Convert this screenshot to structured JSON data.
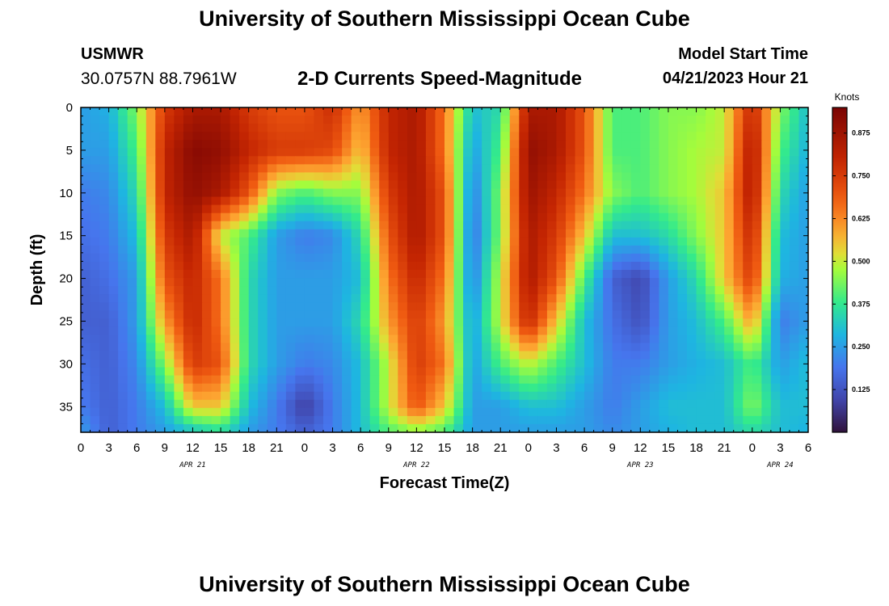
{
  "header": {
    "title": "University of Southern Mississippi Ocean Cube",
    "station": "USMWR",
    "coordinates": "30.0757N  88.7961W",
    "subtitle": "2-D Currents Speed-Magnitude",
    "model_start_label": "Model Start Time",
    "model_start_value": "04/21/2023 Hour 21"
  },
  "footer": {
    "title": "University of Southern Mississippi Ocean Cube"
  },
  "chart_data": {
    "type": "heatmap",
    "title": "2-D Currents Speed-Magnitude",
    "xlabel": "Forecast Time(Z)",
    "ylabel": "Depth (ft)",
    "x_range_hours": [
      0,
      78
    ],
    "x_tick_labels": [
      "0",
      "3",
      "6",
      "9",
      "12",
      "15",
      "18",
      "21",
      "0",
      "3",
      "6",
      "9",
      "12",
      "15",
      "18",
      "21",
      "0",
      "3",
      "6",
      "9",
      "12",
      "15",
      "18",
      "21",
      "0",
      "3",
      "6"
    ],
    "date_labels": [
      {
        "label": "APR 21",
        "hour": 12
      },
      {
        "label": "APR 22",
        "hour": 36
      },
      {
        "label": "APR 23",
        "hour": 60
      },
      {
        "label": "APR 24",
        "hour": 75
      }
    ],
    "y_range_ft": [
      0,
      38
    ],
    "y_ticks": [
      0,
      5,
      10,
      15,
      20,
      25,
      30,
      35
    ],
    "colorbar": {
      "unit": "Knots",
      "range": [
        0,
        0.95
      ],
      "tick_labels": [
        "0.875",
        "0.750",
        "0.625",
        "0.500",
        "0.375",
        "0.250",
        "0.125"
      ],
      "tick_values": [
        0.875,
        0.75,
        0.625,
        0.5,
        0.375,
        0.25,
        0.125
      ]
    },
    "depths_ft": [
      0,
      5,
      10,
      15,
      20,
      25,
      30,
      35,
      38
    ],
    "hours": [
      0,
      3,
      6,
      9,
      12,
      15,
      18,
      21,
      24,
      27,
      30,
      33,
      36,
      39,
      42,
      45,
      48,
      51,
      54,
      57,
      60,
      63,
      66,
      69,
      72,
      75,
      78
    ],
    "speed_knots": [
      [
        0.25,
        0.28,
        0.45,
        0.75,
        0.85,
        0.85,
        0.75,
        0.7,
        0.7,
        0.78,
        0.6,
        0.8,
        0.85,
        0.65,
        0.3,
        0.35,
        0.85,
        0.85,
        0.7,
        0.4,
        0.4,
        0.45,
        0.45,
        0.5,
        0.8,
        0.45,
        0.3
      ],
      [
        0.25,
        0.25,
        0.4,
        0.8,
        0.92,
        0.9,
        0.8,
        0.75,
        0.75,
        0.72,
        0.55,
        0.8,
        0.85,
        0.65,
        0.25,
        0.4,
        0.9,
        0.85,
        0.7,
        0.4,
        0.4,
        0.45,
        0.48,
        0.5,
        0.85,
        0.4,
        0.28
      ],
      [
        0.2,
        0.22,
        0.35,
        0.8,
        0.9,
        0.85,
        0.7,
        0.45,
        0.4,
        0.45,
        0.45,
        0.75,
        0.85,
        0.7,
        0.2,
        0.45,
        0.88,
        0.8,
        0.65,
        0.45,
        0.4,
        0.45,
        0.48,
        0.55,
        0.85,
        0.35,
        0.25
      ],
      [
        0.18,
        0.2,
        0.3,
        0.75,
        0.85,
        0.5,
        0.4,
        0.25,
        0.2,
        0.22,
        0.35,
        0.7,
        0.85,
        0.7,
        0.18,
        0.45,
        0.85,
        0.75,
        0.55,
        0.3,
        0.3,
        0.35,
        0.45,
        0.55,
        0.8,
        0.3,
        0.25
      ],
      [
        0.15,
        0.18,
        0.25,
        0.7,
        0.8,
        0.65,
        0.35,
        0.25,
        0.25,
        0.25,
        0.3,
        0.65,
        0.8,
        0.65,
        0.2,
        0.5,
        0.85,
        0.7,
        0.4,
        0.15,
        0.1,
        0.25,
        0.35,
        0.55,
        0.75,
        0.28,
        0.25
      ],
      [
        0.15,
        0.15,
        0.25,
        0.6,
        0.8,
        0.65,
        0.35,
        0.25,
        0.25,
        0.25,
        0.35,
        0.6,
        0.75,
        0.6,
        0.25,
        0.5,
        0.8,
        0.55,
        0.3,
        0.18,
        0.12,
        0.25,
        0.3,
        0.4,
        0.6,
        0.2,
        0.25
      ],
      [
        0.18,
        0.15,
        0.22,
        0.45,
        0.75,
        0.7,
        0.35,
        0.25,
        0.2,
        0.22,
        0.3,
        0.5,
        0.75,
        0.65,
        0.25,
        0.4,
        0.5,
        0.4,
        0.3,
        0.2,
        0.2,
        0.25,
        0.28,
        0.3,
        0.4,
        0.25,
        0.3
      ],
      [
        0.2,
        0.15,
        0.2,
        0.3,
        0.55,
        0.55,
        0.3,
        0.2,
        0.08,
        0.2,
        0.3,
        0.5,
        0.7,
        0.55,
        0.25,
        0.25,
        0.3,
        0.3,
        0.25,
        0.2,
        0.25,
        0.3,
        0.3,
        0.3,
        0.45,
        0.3,
        0.3
      ],
      [
        0.25,
        0.15,
        0.2,
        0.25,
        0.3,
        0.35,
        0.25,
        0.2,
        0.15,
        0.2,
        0.3,
        0.4,
        0.45,
        0.4,
        0.25,
        0.25,
        0.25,
        0.25,
        0.25,
        0.22,
        0.25,
        0.28,
        0.3,
        0.3,
        0.35,
        0.3,
        0.28
      ]
    ]
  }
}
